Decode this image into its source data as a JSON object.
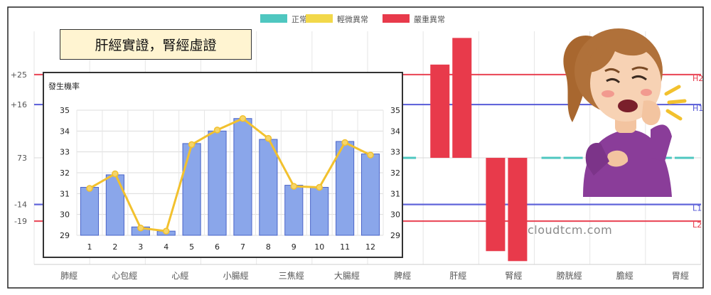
{
  "chart_data": [
    {
      "type": "bar",
      "title": "",
      "legend": {
        "placement": "top-center",
        "entries": [
          {
            "label": "正常",
            "color": "#4fc7c0"
          },
          {
            "label": "輕微異常",
            "color": "#f2d84a"
          },
          {
            "label": "嚴重異常",
            "color": "#e83a4b"
          }
        ]
      },
      "categories": [
        "肺經",
        "心包經",
        "心經",
        "小腸經",
        "三焦經",
        "大腸經",
        "脾經",
        "肝經",
        "腎經",
        "膀胱經",
        "膽經",
        "胃經"
      ],
      "y_tick_labels": [
        "+25",
        "+16",
        "73",
        "-14",
        "-19"
      ],
      "y_ticks": [
        25,
        16,
        0,
        -14,
        -19
      ],
      "reference_lines": [
        {
          "label": "H2",
          "value": 25,
          "color": "#e83a4b"
        },
        {
          "label": "H1",
          "value": 16,
          "color": "#5155d6"
        },
        {
          "label": "L1",
          "value": -14,
          "color": "#5155d6"
        },
        {
          "label": "L2",
          "value": -19,
          "color": "#e83a4b"
        }
      ],
      "series": [
        {
          "category": "脾經",
          "left": 0,
          "right": 0,
          "level": "normal"
        },
        {
          "category": "肝經",
          "left": 28,
          "right": 36,
          "level": "severe"
        },
        {
          "category": "腎經",
          "left": -28,
          "right": -31,
          "level": "severe"
        },
        {
          "category": "膀胱經",
          "left": 0,
          "right": 0,
          "level": "normal"
        },
        {
          "category": "胃經",
          "left": 0,
          "right": 0,
          "level": "normal"
        }
      ],
      "ylim": [
        -32,
        38
      ]
    },
    {
      "type": "bar",
      "title": "",
      "ylabel": "發生機率",
      "categories": [
        "1",
        "2",
        "3",
        "4",
        "5",
        "6",
        "7",
        "8",
        "9",
        "10",
        "11",
        "12"
      ],
      "series": [
        {
          "name": "bars",
          "type": "bar",
          "values": [
            31.3,
            31.9,
            29.4,
            29.2,
            33.4,
            34.0,
            34.6,
            33.6,
            31.4,
            31.3,
            33.5,
            32.9
          ],
          "color": "#8aa6ea"
        },
        {
          "name": "line",
          "type": "line",
          "values": [
            31.25,
            31.95,
            29.35,
            29.2,
            33.35,
            34.05,
            34.6,
            33.65,
            31.35,
            31.3,
            33.45,
            32.85
          ],
          "color": "#f2c12e"
        }
      ],
      "ylim": [
        29,
        35
      ],
      "yticks": [
        29,
        30,
        31,
        32,
        33,
        34,
        35
      ],
      "grid": true
    }
  ],
  "title_box": {
    "text": "肝經實證，腎經虛證"
  },
  "watermark": {
    "text": "cloudtcm.com"
  },
  "illustration": {
    "name": "coughing-woman-illustration"
  }
}
